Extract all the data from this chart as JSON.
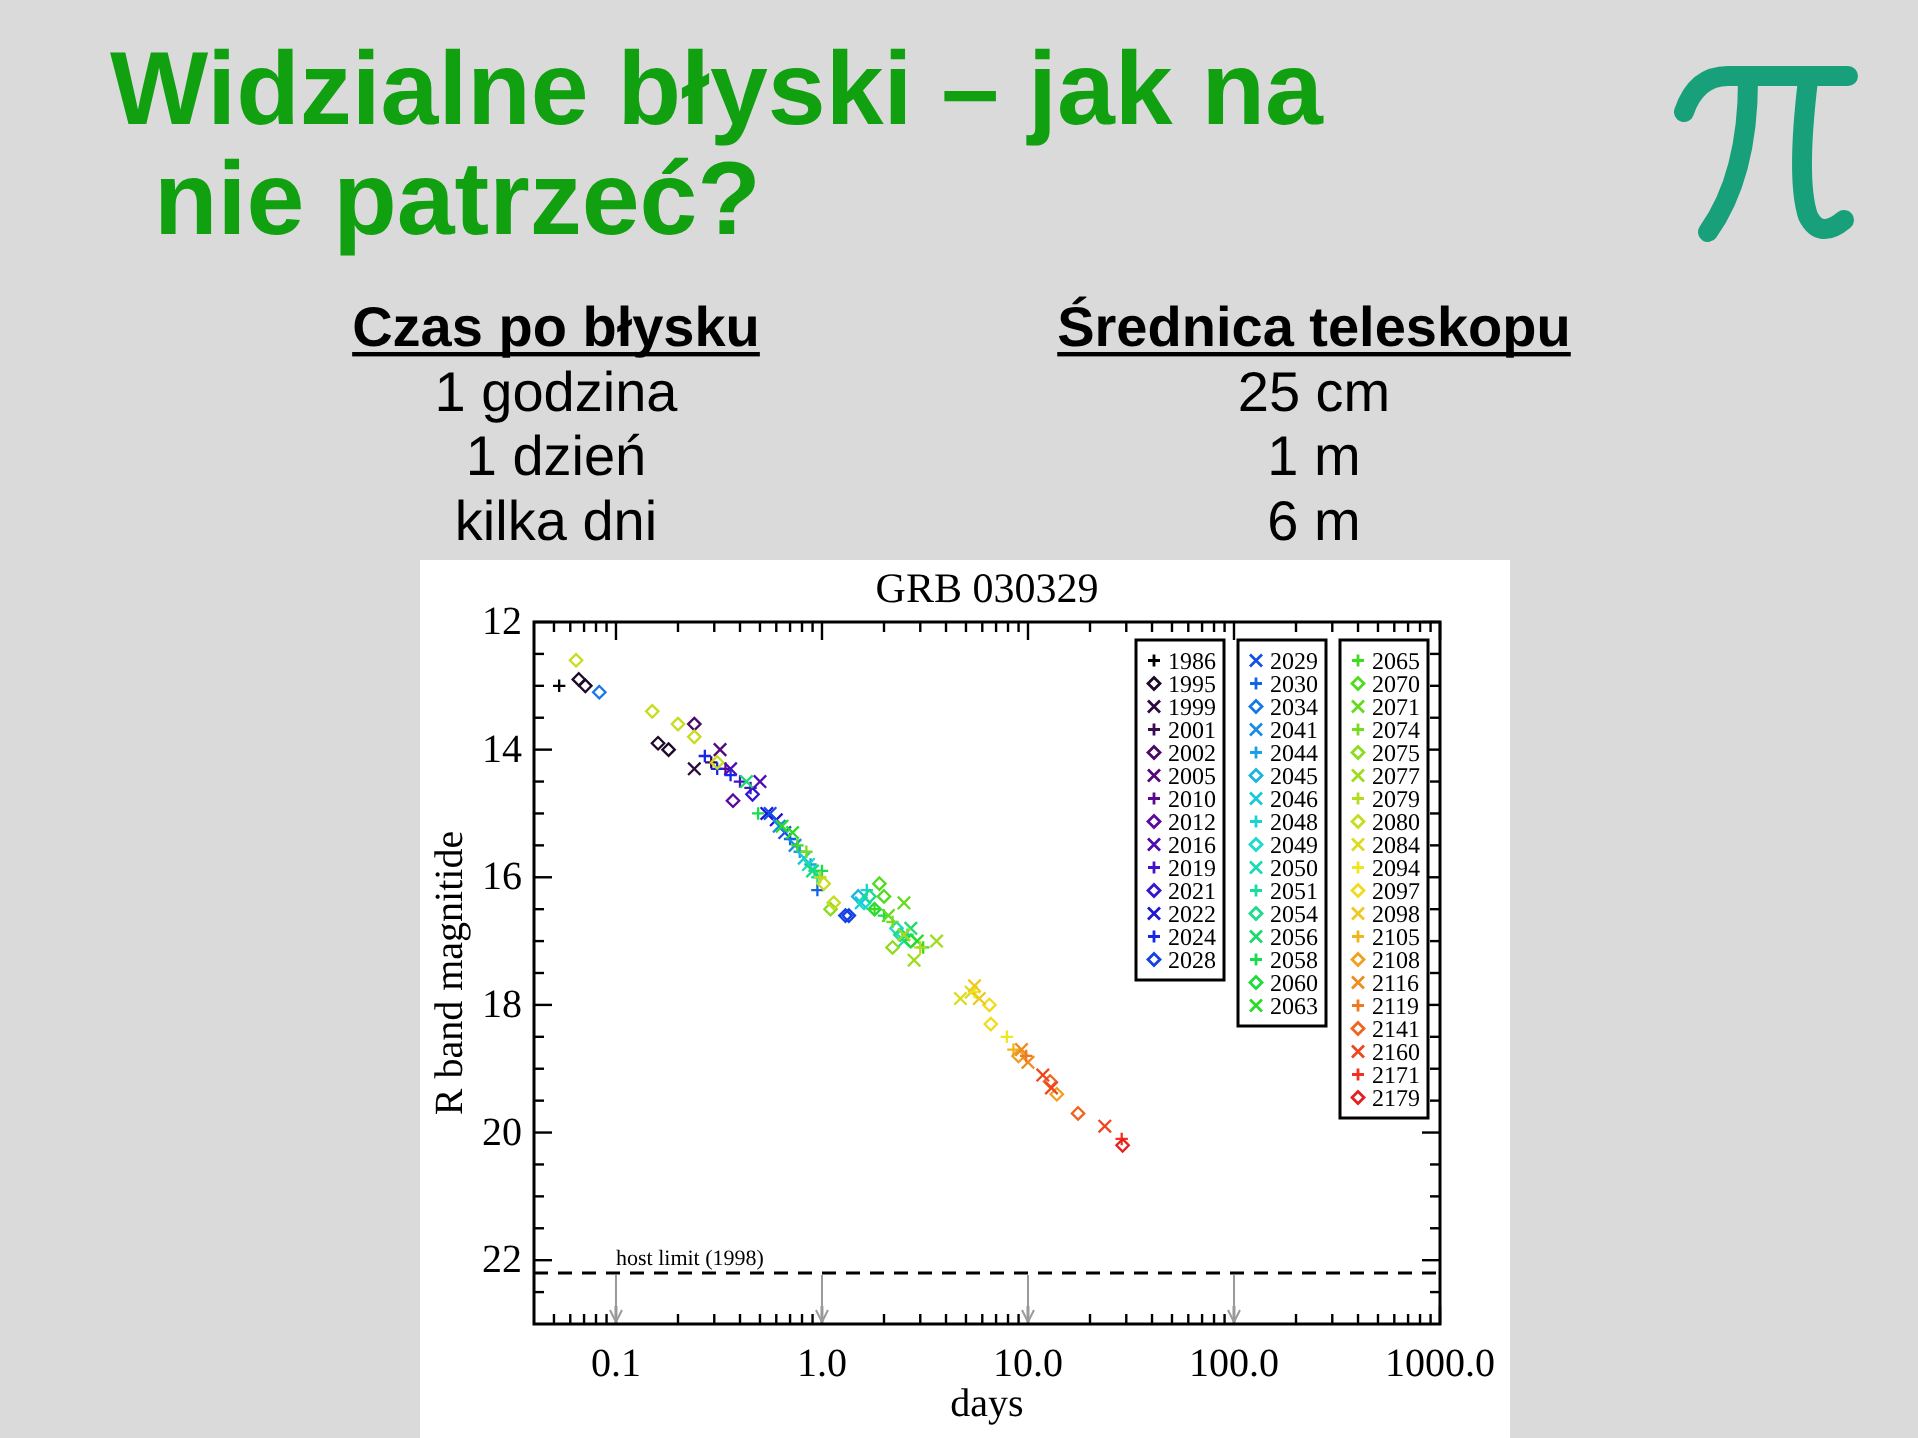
{
  "chart_data": {
    "type": "scatter",
    "title": "Widzialne błyski – jak na nie patrzeć?",
    "subtitle": "GRB 030329",
    "xlabel": "days",
    "ylabel": "R band magnitide",
    "annotations": [
      "Czas po błysku",
      "1 godzina",
      "1 dzień",
      "kilka dni",
      "Średnica teleskopu",
      "25 cm",
      "1 m",
      "6 m"
    ],
    "log": "x",
    "xlim": [
      0.04,
      1000
    ],
    "ylim": [
      23,
      12
    ],
    "xticks": [
      {
        "value": 0.05,
        "label": null
      },
      {
        "value": 0.06,
        "label": null
      },
      {
        "value": 0.07,
        "label": null
      },
      {
        "value": 0.08,
        "label": null
      },
      {
        "value": 0.09,
        "label": null
      },
      0.1,
      {
        "value": 0.2,
        "label": null
      },
      {
        "value": 0.3,
        "label": null
      },
      {
        "value": 0.4,
        "label": null
      },
      {
        "value": 0.5,
        "label": null
      },
      {
        "value": 0.6,
        "label": null
      },
      {
        "value": 0.7,
        "label": null
      },
      {
        "value": 0.8,
        "label": null
      },
      {
        "value": 0.9,
        "label": null
      },
      {
        "value": 1,
        "label": "1.0"
      },
      {
        "value": 2,
        "label": null
      },
      {
        "value": 3,
        "label": null
      },
      {
        "value": 4,
        "label": null
      },
      {
        "value": 5,
        "label": null
      },
      {
        "value": 6,
        "label": null
      },
      {
        "value": 7,
        "label": null
      },
      {
        "value": 8,
        "label": null
      },
      {
        "value": 9,
        "label": null
      },
      {
        "value": 10,
        "label": "10.0"
      },
      {
        "value": 20,
        "label": null
      },
      {
        "value": 30,
        "label": null
      },
      {
        "value": 40,
        "label": null
      },
      {
        "value": 50,
        "label": null
      },
      {
        "value": 60,
        "label": null
      },
      {
        "value": 70,
        "label": null
      },
      {
        "value": 80,
        "label": null
      },
      {
        "value": 90,
        "label": null
      },
      {
        "value": 100,
        "label": "100.0"
      },
      {
        "value": 200,
        "label": null
      },
      {
        "value": 300,
        "label": null
      },
      {
        "value": 400,
        "label": null
      },
      {
        "value": 500,
        "label": null
      },
      {
        "value": 600,
        "label": null
      },
      {
        "value": 700,
        "label": null
      },
      {
        "value": 800,
        "label": null
      },
      {
        "value": 900,
        "label": null
      },
      {
        "value": 1000,
        "label": "1000.0"
      }
    ],
    "yticks": [
      12,
      {
        "value": 12.5,
        "label": null
      },
      {
        "value": 13,
        "label": null
      },
      {
        "value": 13.5,
        "label": null
      },
      14,
      {
        "value": 14.5,
        "label": null
      },
      {
        "value": 15,
        "label": null
      },
      {
        "value": 15.5,
        "label": null
      },
      16,
      {
        "value": 16.5,
        "label": null
      },
      {
        "value": 17,
        "label": null
      },
      {
        "value": 17.5,
        "label": null
      },
      18,
      {
        "value": 18.5,
        "label": null
      },
      {
        "value": 19,
        "label": null
      },
      {
        "value": 19.5,
        "label": null
      },
      20,
      {
        "value": 20.5,
        "label": null
      },
      {
        "value": 21,
        "label": null
      },
      {
        "value": 21.5,
        "label": null
      },
      22,
      {
        "value": 22.5,
        "label": null
      }
    ],
    "ref_lines": [
      {
        "axis": "y",
        "value": 22.2,
        "label": "host limit (1998)",
        "line_style": "dashed"
      }
    ],
    "legend": "top right",
    "series": [
      {
        "name": "1986",
        "color": "#000000",
        "marker": "cross",
        "x": [
          0.053
        ],
        "values": [
          13.0
        ]
      },
      {
        "name": "1995",
        "color": "#1e0a28",
        "marker": "diamond",
        "x": [
          0.066,
          0.071,
          0.16,
          0.18
        ],
        "values": [
          12.9,
          13.0,
          13.9,
          14.0
        ]
      },
      {
        "name": "1999",
        "color": "#2d0a3c",
        "marker": "x",
        "x": [
          0.24
        ],
        "values": [
          14.3
        ]
      },
      {
        "name": "2001",
        "color": "#3c0a50",
        "marker": "cross",
        "x": [
          0.29
        ],
        "values": [
          14.2
        ]
      },
      {
        "name": "2002",
        "color": "#4b0a64",
        "marker": "diamond",
        "x": [
          0.24
        ],
        "values": [
          13.6
        ]
      },
      {
        "name": "2005",
        "color": "#55087a",
        "marker": "x",
        "x": [
          0.32
        ],
        "values": [
          14.0
        ]
      },
      {
        "name": "2010",
        "color": "#5a0a8c",
        "marker": "cross",
        "x": [
          0.34
        ],
        "values": [
          14.3
        ]
      },
      {
        "name": "2012",
        "color": "#5a0aa0",
        "marker": "diamond",
        "x": [
          0.37
        ],
        "values": [
          14.8
        ]
      },
      {
        "name": "2016",
        "color": "#500ab4",
        "marker": "x",
        "x": [
          0.36,
          0.5
        ],
        "values": [
          14.3,
          14.5
        ]
      },
      {
        "name": "2019",
        "color": "#4614c8",
        "marker": "cross",
        "x": [
          0.4,
          0.45
        ],
        "values": [
          14.5,
          14.6
        ]
      },
      {
        "name": "2021",
        "color": "#3214d2",
        "marker": "diamond",
        "x": [
          0.46
        ],
        "values": [
          14.7
        ]
      },
      {
        "name": "2022",
        "color": "#1e14dc",
        "marker": "x",
        "x": [
          0.54,
          0.6
        ],
        "values": [
          15.0,
          15.1
        ]
      },
      {
        "name": "2024",
        "color": "#1428e6",
        "marker": "cross",
        "x": [
          0.27,
          0.31,
          0.36
        ],
        "values": [
          14.1,
          14.3,
          14.4
        ]
      },
      {
        "name": "2028",
        "color": "#1440e6",
        "marker": "diamond",
        "x": [
          1.3,
          1.35
        ],
        "values": [
          16.6,
          16.6
        ]
      },
      {
        "name": "2029",
        "color": "#1450e6",
        "marker": "x",
        "x": [
          0.56,
          0.66
        ],
        "values": [
          15.0,
          15.3
        ]
      },
      {
        "name": "2030",
        "color": "#1464e6",
        "marker": "cross",
        "x": [
          0.7,
          0.95
        ],
        "values": [
          15.4,
          16.2
        ]
      },
      {
        "name": "2034",
        "color": "#1a78e6",
        "marker": "diamond",
        "x": [
          0.083
        ],
        "values": [
          13.1
        ]
      },
      {
        "name": "2041",
        "color": "#1a8ce6",
        "marker": "x",
        "x": [
          0.62,
          0.74
        ],
        "values": [
          15.2,
          15.5
        ]
      },
      {
        "name": "2044",
        "color": "#1aa0e6",
        "marker": "cross",
        "x": [
          0.78,
          0.88
        ],
        "values": [
          15.6,
          15.8
        ]
      },
      {
        "name": "2045",
        "color": "#1ab4e0",
        "marker": "diamond",
        "x": [
          1.5
        ],
        "values": [
          16.3
        ]
      },
      {
        "name": "2046",
        "color": "#1ac8dc",
        "marker": "x",
        "x": [
          0.82,
          1.55
        ],
        "values": [
          15.7,
          16.4
        ]
      },
      {
        "name": "2048",
        "color": "#1ad2d2",
        "marker": "cross",
        "x": [
          0.92,
          1.65
        ],
        "values": [
          15.9,
          16.2
        ]
      },
      {
        "name": "2049",
        "color": "#1adcc8",
        "marker": "diamond",
        "x": [
          1.6,
          2.3
        ],
        "values": [
          16.4,
          16.8
        ]
      },
      {
        "name": "2050",
        "color": "#1adcb4",
        "marker": "x",
        "x": [
          0.86,
          2.5
        ],
        "values": [
          15.8,
          17.0
        ]
      },
      {
        "name": "2051",
        "color": "#1adca0",
        "marker": "cross",
        "x": [
          0.95,
          2.6
        ],
        "values": [
          16.0,
          16.9
        ]
      },
      {
        "name": "2054",
        "color": "#1adc8c",
        "marker": "diamond",
        "x": [
          1.7,
          2.4
        ],
        "values": [
          16.3,
          16.9
        ]
      },
      {
        "name": "2056",
        "color": "#1adc6e",
        "marker": "x",
        "x": [
          0.43,
          0.9,
          2.7
        ],
        "values": [
          14.5,
          15.9,
          16.8
        ]
      },
      {
        "name": "2058",
        "color": "#1adc50",
        "marker": "cross",
        "x": [
          0.49,
          1.0,
          2.0
        ],
        "values": [
          15.0,
          15.9,
          16.6
        ]
      },
      {
        "name": "2060",
        "color": "#1edc3c",
        "marker": "diamond",
        "x": [
          1.8,
          2.7
        ],
        "values": [
          16.5,
          17.0
        ]
      },
      {
        "name": "2063",
        "color": "#28dc28",
        "marker": "x",
        "x": [
          0.64,
          0.72,
          2.9
        ],
        "values": [
          15.2,
          15.3,
          17.0
        ]
      },
      {
        "name": "2065",
        "color": "#3cdc1e",
        "marker": "cross",
        "x": [
          0.76,
          1.8,
          3.1
        ],
        "values": [
          15.5,
          16.5,
          17.1
        ]
      },
      {
        "name": "2070",
        "color": "#50dc1e",
        "marker": "diamond",
        "x": [
          1.9,
          2.0
        ],
        "values": [
          16.1,
          16.3
        ]
      },
      {
        "name": "2071",
        "color": "#64dc1e",
        "marker": "x",
        "x": [
          2.1,
          2.5
        ],
        "values": [
          16.6,
          16.4
        ]
      },
      {
        "name": "2074",
        "color": "#78dc1e",
        "marker": "cross",
        "x": [
          0.84,
          2.2
        ],
        "values": [
          15.6,
          16.7
        ]
      },
      {
        "name": "2075",
        "color": "#8cdc1e",
        "marker": "diamond",
        "x": [
          1.1,
          2.2
        ],
        "values": [
          16.5,
          17.1
        ]
      },
      {
        "name": "2077",
        "color": "#a0dc1e",
        "marker": "x",
        "x": [
          2.5,
          2.8,
          3.6
        ],
        "values": [
          16.9,
          17.3,
          17.0
        ]
      },
      {
        "name": "2079",
        "color": "#b4dc1e",
        "marker": "cross",
        "x": [
          0.98,
          3.0
        ],
        "values": [
          16.0,
          17.1
        ]
      },
      {
        "name": "2080",
        "color": "#c8dc1e",
        "marker": "diamond",
        "x": [
          0.064,
          0.15,
          0.2,
          0.24,
          0.31,
          1.02,
          1.14
        ],
        "values": [
          12.6,
          13.4,
          13.6,
          13.8,
          14.2,
          16.1,
          16.4
        ]
      },
      {
        "name": "2084",
        "color": "#dcdc1e",
        "marker": "x",
        "x": [
          4.7,
          5.3
        ],
        "values": [
          17.9,
          17.8
        ]
      },
      {
        "name": "2094",
        "color": "#f0e61e",
        "marker": "cross",
        "x": [
          5.5,
          7.9
        ],
        "values": [
          17.8,
          18.5
        ]
      },
      {
        "name": "2097",
        "color": "#f0dc1e",
        "marker": "diamond",
        "x": [
          6.5,
          6.6
        ],
        "values": [
          18.0,
          18.3
        ]
      },
      {
        "name": "2098",
        "color": "#f0c81e",
        "marker": "x",
        "x": [
          5.5,
          5.8
        ],
        "values": [
          17.7,
          17.9
        ]
      },
      {
        "name": "2105",
        "color": "#f0b41e",
        "marker": "cross",
        "x": [
          8.5
        ],
        "values": [
          18.7
        ]
      },
      {
        "name": "2108",
        "color": "#f0a01e",
        "marker": "diamond",
        "x": [
          9.0,
          13.8
        ],
        "values": [
          18.8,
          19.4
        ]
      },
      {
        "name": "2116",
        "color": "#f08c1e",
        "marker": "x",
        "x": [
          9.3,
          10.0
        ],
        "values": [
          18.7,
          18.9
        ]
      },
      {
        "name": "2119",
        "color": "#f0781e",
        "marker": "cross",
        "x": [
          9.8
        ],
        "values": [
          18.8
        ]
      },
      {
        "name": "2141",
        "color": "#f0641e",
        "marker": "diamond",
        "x": [
          12.8,
          17.5
        ],
        "values": [
          19.2,
          19.7
        ]
      },
      {
        "name": "2160",
        "color": "#f0461e",
        "marker": "x",
        "x": [
          11.8,
          13.0,
          23.6
        ],
        "values": [
          19.1,
          19.3,
          19.9
        ]
      },
      {
        "name": "2171",
        "color": "#f0321e",
        "marker": "cross",
        "x": [
          28.5
        ],
        "values": [
          20.1
        ]
      },
      {
        "name": "2179",
        "color": "#e61e1e",
        "marker": "diamond",
        "x": [
          28.8
        ],
        "values": [
          20.2
        ]
      }
    ]
  }
}
